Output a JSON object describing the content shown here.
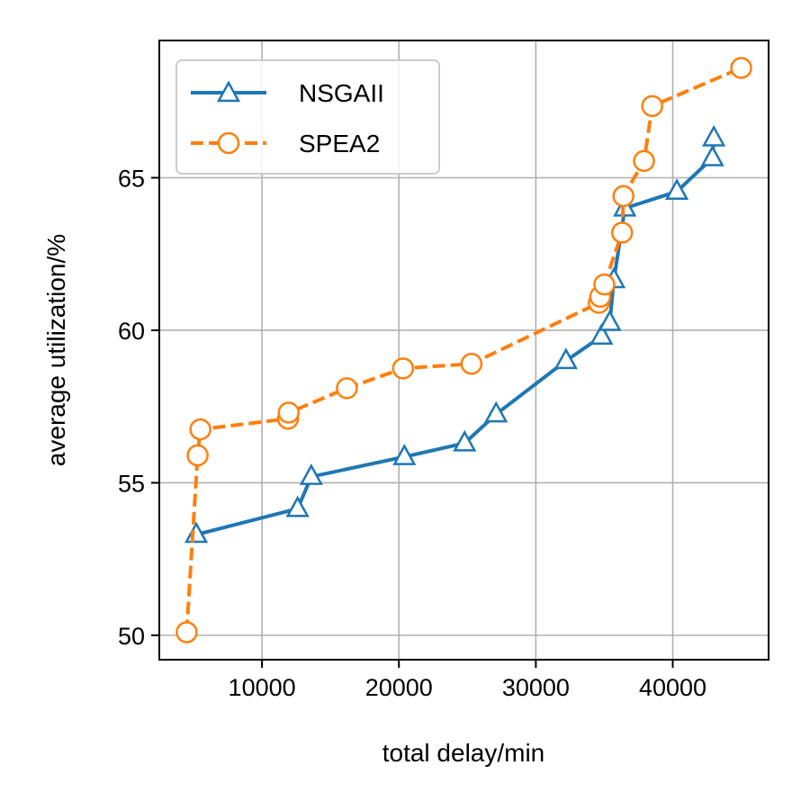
{
  "chart_data": {
    "type": "line",
    "xlabel": "total delay/min",
    "ylabel": "average utilization/%",
    "xlim": [
      2500,
      47000
    ],
    "ylim": [
      49.2,
      69.5
    ],
    "xticks": [
      10000,
      20000,
      30000,
      40000
    ],
    "xtick_labels": [
      "10000",
      "20000",
      "30000",
      "40000"
    ],
    "yticks": [
      50,
      55,
      60,
      65
    ],
    "ytick_labels": [
      "50",
      "55",
      "60",
      "65"
    ],
    "grid": true,
    "legend_position": "top-left",
    "series": [
      {
        "name": "NSGAII",
        "color": "#1f77b4",
        "marker": "triangle",
        "linestyle": "solid",
        "points": [
          [
            5200,
            53.3
          ],
          [
            12600,
            54.15
          ],
          [
            13600,
            55.2
          ],
          [
            20400,
            55.85
          ],
          [
            24800,
            56.3
          ],
          [
            27100,
            57.25
          ],
          [
            32200,
            59.0
          ],
          [
            34800,
            59.8
          ],
          [
            35400,
            60.25
          ],
          [
            35700,
            61.65
          ],
          [
            36500,
            64.0
          ],
          [
            40300,
            64.55
          ],
          [
            42900,
            65.65
          ],
          [
            43000,
            66.3
          ]
        ]
      },
      {
        "name": "SPEA2",
        "color": "#ff7f0e",
        "marker": "circle",
        "linestyle": "dashed",
        "points": [
          [
            4500,
            50.1
          ],
          [
            5300,
            55.9
          ],
          [
            5500,
            56.75
          ],
          [
            11900,
            57.1
          ],
          [
            11950,
            57.3
          ],
          [
            16200,
            58.1
          ],
          [
            20300,
            58.75
          ],
          [
            25300,
            58.9
          ],
          [
            34600,
            60.9
          ],
          [
            34700,
            61.1
          ],
          [
            35000,
            61.5
          ],
          [
            36300,
            63.2
          ],
          [
            36400,
            64.4
          ],
          [
            37900,
            65.55
          ],
          [
            38500,
            67.35
          ],
          [
            45000,
            68.6
          ]
        ]
      }
    ]
  }
}
